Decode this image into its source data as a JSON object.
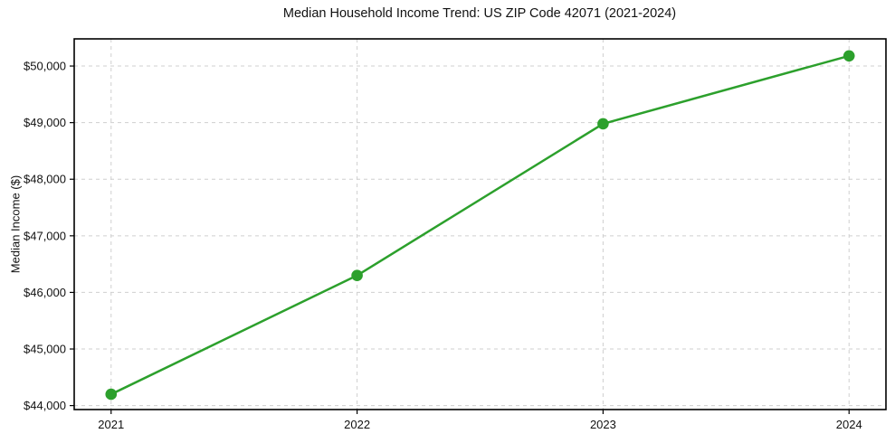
{
  "chart_data": {
    "type": "line",
    "title": "Median Household Income Trend: US ZIP Code 42071 (2021-2024)",
    "xlabel": "",
    "ylabel": "Median Income ($)",
    "x": [
      2021,
      2022,
      2023,
      2024
    ],
    "x_tick_labels": [
      "2021",
      "2022",
      "2023",
      "2024"
    ],
    "series": [
      {
        "name": "Median household income",
        "values": [
          44200,
          46300,
          48980,
          50180
        ]
      }
    ],
    "y_ticks": [
      44000,
      45000,
      46000,
      47000,
      48000,
      49000,
      50000
    ],
    "y_tick_labels": [
      "$44,000",
      "$45,000",
      "$46,000",
      "$47,000",
      "$48,000",
      "$49,000",
      "$50,000"
    ],
    "xlim": [
      2020.85,
      2024.15
    ],
    "ylim": [
      43930,
      50480
    ],
    "grid": true,
    "legend": "none",
    "line_color": "#2ca02c",
    "marker": "o",
    "grid_color": "#cfcfcf",
    "axis_color": "#000000",
    "background_color": "#ffffff"
  }
}
